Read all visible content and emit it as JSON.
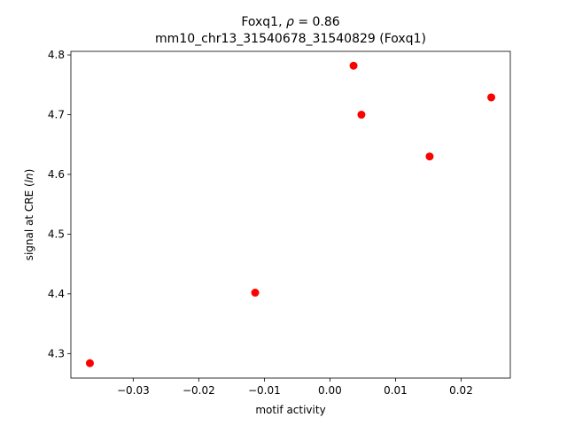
{
  "chart_data": {
    "type": "scatter",
    "title": "Foxq1, ρ = 0.86",
    "title_prefix": "Foxq1, ",
    "title_rho": "ρ",
    "title_suffix": " = 0.86",
    "subtitle": "mm10_chr13_31540678_31540829 (Foxq1)",
    "xlabel": "motif activity",
    "ylabel_prefix": "signal at CRE (",
    "ylabel_italic": "ln",
    "ylabel_suffix": ")",
    "xlim": [
      -0.0395,
      0.0275
    ],
    "ylim": [
      4.259,
      4.806
    ],
    "xticks": [
      {
        "value": -0.03,
        "label": "−0.03"
      },
      {
        "value": -0.02,
        "label": "−0.02"
      },
      {
        "value": -0.01,
        "label": "−0.01"
      },
      {
        "value": 0.0,
        "label": "0.00"
      },
      {
        "value": 0.01,
        "label": "0.01"
      },
      {
        "value": 0.02,
        "label": "0.02"
      }
    ],
    "yticks": [
      {
        "value": 4.3,
        "label": "4.3"
      },
      {
        "value": 4.4,
        "label": "4.4"
      },
      {
        "value": 4.5,
        "label": "4.5"
      },
      {
        "value": 4.6,
        "label": "4.6"
      },
      {
        "value": 4.7,
        "label": "4.7"
      },
      {
        "value": 4.8,
        "label": "4.8"
      }
    ],
    "grid": false,
    "marker_color": "#ff0000",
    "points": [
      {
        "x": -0.0366,
        "y": 4.284
      },
      {
        "x": -0.0114,
        "y": 4.402
      },
      {
        "x": 0.0036,
        "y": 4.782
      },
      {
        "x": 0.0048,
        "y": 4.7
      },
      {
        "x": 0.0152,
        "y": 4.63
      },
      {
        "x": 0.0246,
        "y": 4.729
      }
    ]
  }
}
